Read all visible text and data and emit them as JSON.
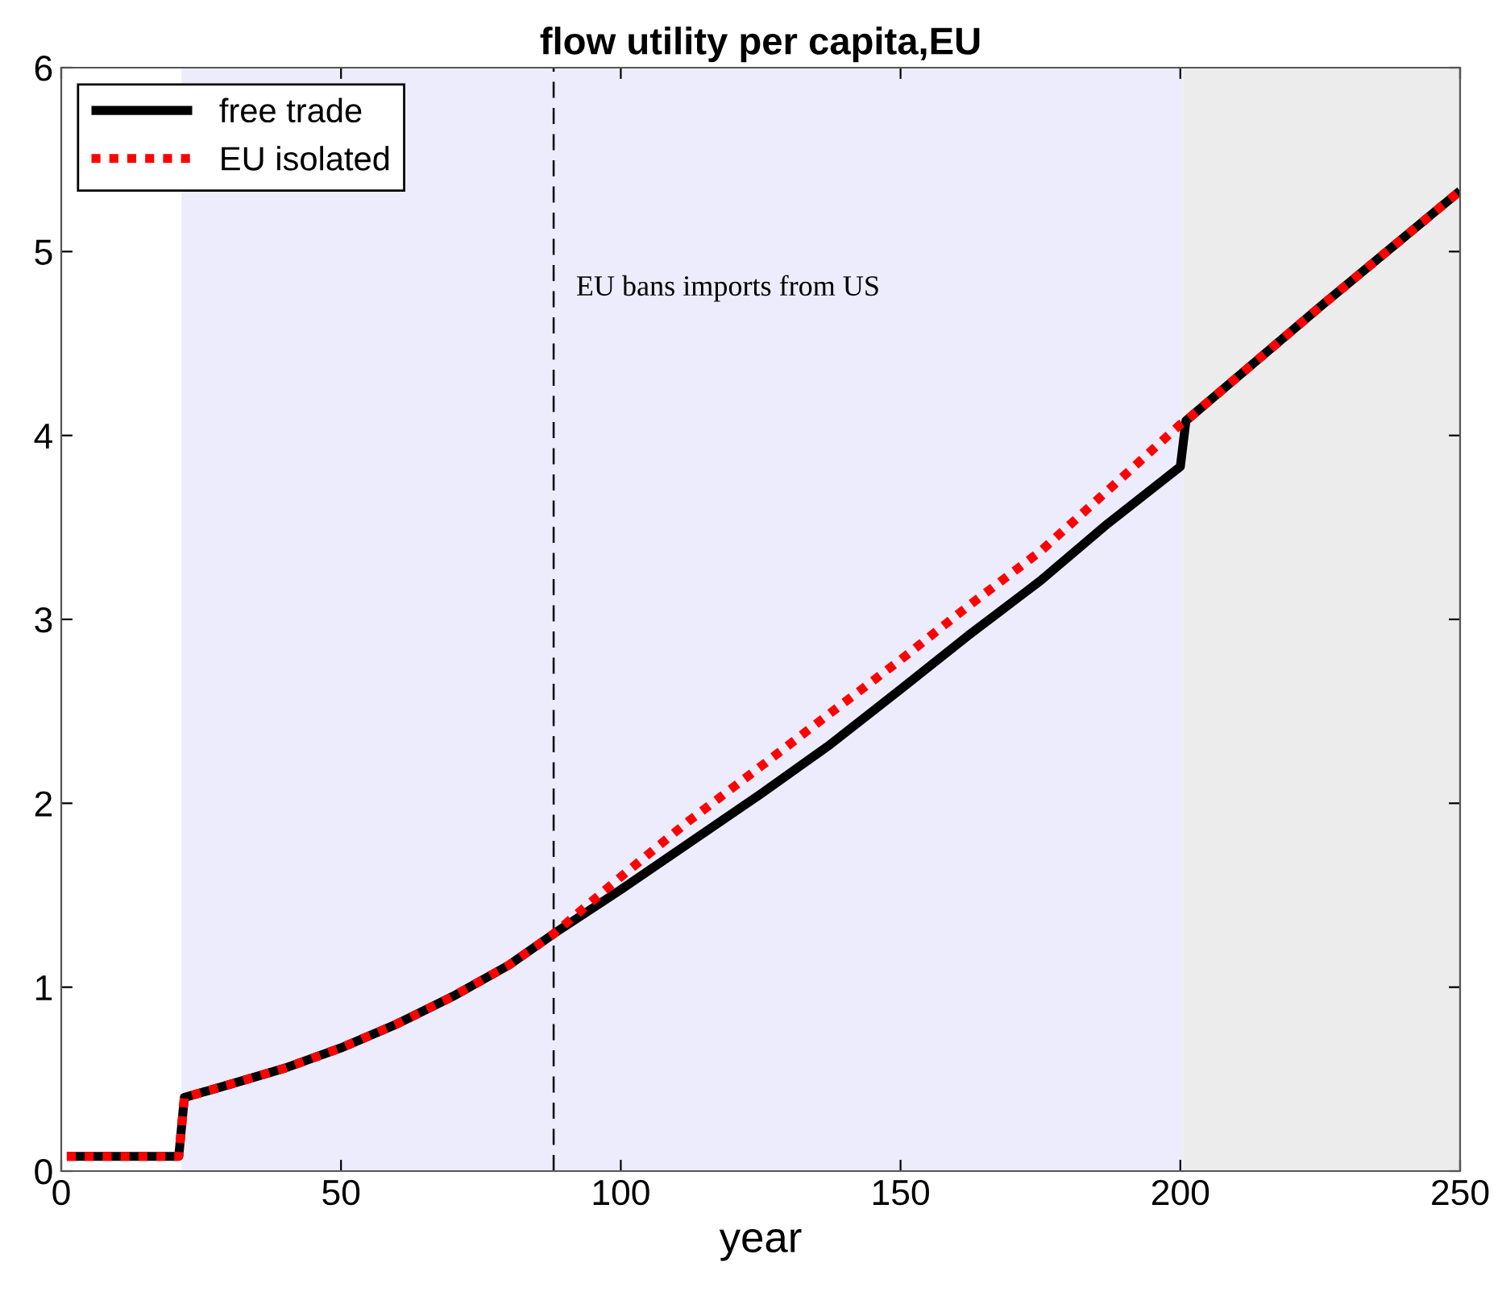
{
  "chart_data": {
    "type": "line",
    "title": "flow utility per capita,EU",
    "xlabel": "year",
    "xlim": [
      0,
      250
    ],
    "ylim": [
      0,
      6
    ],
    "xticks": [
      0,
      50,
      100,
      150,
      200,
      250
    ],
    "yticks": [
      0,
      1,
      2,
      3,
      4,
      5,
      6
    ],
    "grid": false,
    "legend": "top left",
    "marker": "none",
    "bands": [
      {
        "axis": "x",
        "from": 21.5,
        "to": 200.5,
        "color": "#ececfc"
      },
      {
        "axis": "x",
        "from": 200.5,
        "to": 250,
        "color": "#ececec"
      }
    ],
    "ref_lines": [
      {
        "axis": "x",
        "value": 88,
        "label": "EU bans imports from US",
        "color": "#000000",
        "line_style": "dashed"
      }
    ],
    "series": [
      {
        "name": "free trade",
        "color": "#000000",
        "line_style": "solid",
        "x": [
          1,
          21,
          22,
          30,
          40,
          50,
          60,
          70,
          80,
          88,
          100,
          112,
          125,
          137,
          150,
          162,
          175,
          187,
          200,
          201,
          225,
          250
        ],
        "values": [
          0.08,
          0.08,
          0.4,
          0.47,
          0.56,
          0.67,
          0.8,
          0.95,
          1.12,
          1.29,
          1.53,
          1.78,
          2.05,
          2.31,
          2.62,
          2.91,
          3.21,
          3.52,
          3.83,
          4.08,
          4.7,
          5.33
        ]
      },
      {
        "name": "EU isolated",
        "color": "#ff0000",
        "line_style": "dotted",
        "x": [
          1,
          21,
          22,
          30,
          40,
          50,
          60,
          70,
          80,
          88,
          100,
          112,
          125,
          137,
          150,
          162,
          175,
          187,
          200,
          201,
          225,
          250
        ],
        "values": [
          0.08,
          0.08,
          0.4,
          0.47,
          0.56,
          0.67,
          0.8,
          0.95,
          1.12,
          1.29,
          1.6,
          1.9,
          2.2,
          2.48,
          2.78,
          3.07,
          3.37,
          3.7,
          4.06,
          4.08,
          4.7,
          5.33
        ]
      }
    ]
  }
}
